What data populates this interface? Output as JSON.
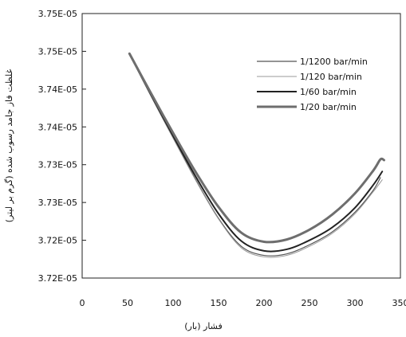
{
  "chart_data": {
    "type": "line",
    "title": "",
    "xlabel": "فشار (بار)",
    "ylabel": "غلظت فاز جامد رسوب شده (گرم بر لیتر)",
    "x_ticks": [
      "0",
      "50",
      "100",
      "150",
      "200",
      "250",
      "300",
      "350"
    ],
    "y_ticks": [
      "3.75E-05",
      "3.75E-05",
      "3.74E-05",
      "3.74E-05",
      "3.73E-05",
      "3.73E-05",
      "3.72E-05",
      "3.72E-05"
    ],
    "xlim": [
      0,
      350
    ],
    "ylim": [
      3.717e-05,
      3.752e-05
    ],
    "grid": false,
    "legend_position": "top-right",
    "series": [
      {
        "name": "1/1200 bar/min",
        "color": "#555555",
        "x": [
          52,
          75,
          100,
          125,
          150,
          175,
          200,
          225,
          250,
          275,
          300,
          320,
          328
        ],
        "y": [
          3.7466e-05,
          3.7413e-05,
          3.7356e-05,
          3.73e-05,
          3.7249e-05,
          3.7212e-05,
          3.72e-05,
          3.7202e-05,
          3.7214e-05,
          3.7231e-05,
          3.7257e-05,
          3.7286e-05,
          3.7303e-05
        ]
      },
      {
        "name": "1/120 bar/min",
        "color": "#9a9a9a",
        "x": [
          52,
          75,
          100,
          125,
          150,
          175,
          200,
          225,
          250,
          275,
          300,
          320,
          330
        ],
        "y": [
          3.7466e-05,
          3.7412e-05,
          3.7355e-05,
          3.7299e-05,
          3.7248e-05,
          3.721e-05,
          3.7198e-05,
          3.72e-05,
          3.7212e-05,
          3.7229e-05,
          3.7255e-05,
          3.7284e-05,
          3.73e-05
        ]
      },
      {
        "name": "1/60 bar/min",
        "color": "#222222",
        "x": [
          52,
          75,
          100,
          125,
          150,
          175,
          200,
          225,
          250,
          275,
          300,
          320,
          330
        ],
        "y": [
          3.7467e-05,
          3.7414e-05,
          3.7358e-05,
          3.7304e-05,
          3.7255e-05,
          3.7219e-05,
          3.7206e-05,
          3.7208e-05,
          3.722e-05,
          3.7237e-05,
          3.7263e-05,
          3.7293e-05,
          3.7311e-05
        ]
      },
      {
        "name": "1/20 bar/min",
        "color": "#6e6e6e",
        "x": [
          52,
          75,
          100,
          125,
          150,
          175,
          200,
          225,
          250,
          275,
          300,
          320,
          328,
          332
        ],
        "y": [
          3.7467e-05,
          3.7416e-05,
          3.7362e-05,
          3.731e-05,
          3.7264e-05,
          3.723e-05,
          3.7218e-05,
          3.7221e-05,
          3.7234e-05,
          3.7254e-05,
          3.7282e-05,
          3.7312e-05,
          3.7327e-05,
          3.7326e-05
        ]
      }
    ]
  }
}
